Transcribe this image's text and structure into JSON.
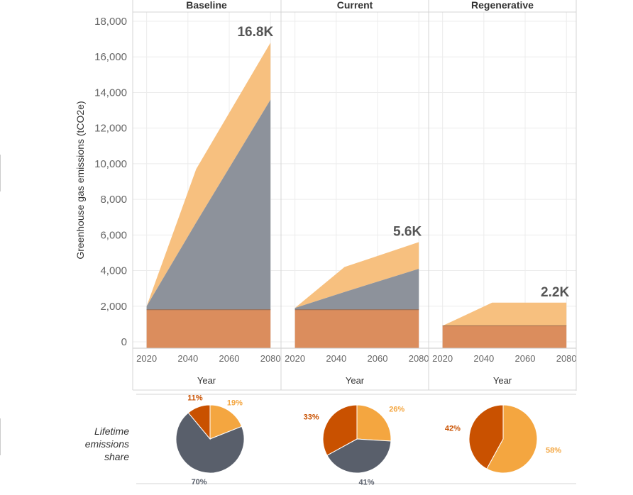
{
  "chart_data": {
    "type": "area",
    "ylabel": "Greenhouse gas emissions (tCO2e)",
    "xlabel": "Year",
    "yticks": [
      "0",
      "2,000",
      "4,000",
      "6,000",
      "8,000",
      "10,000",
      "12,000",
      "14,000",
      "16,000",
      "18,000"
    ],
    "ylim": [
      0,
      18000
    ],
    "xticks": [
      "2020",
      "2040",
      "2060",
      "2080"
    ],
    "xlim": [
      2016,
      2082
    ],
    "grid": true,
    "colors": {
      "light": "#F7C07F",
      "gray": "#8D929B",
      "dark": "#DB8D5D"
    },
    "panels": [
      {
        "title": "Baseline",
        "total_label": "16.8K",
        "x": [
          2020,
          2044,
          2080
        ],
        "series": [
          {
            "values": [
              1800,
              1800,
              1800
            ]
          },
          {
            "values": [
              2000,
              6700,
              13600
            ]
          },
          {
            "values": [
              2000,
              9700,
              16800
            ]
          }
        ]
      },
      {
        "title": "Current",
        "total_label": "5.6K",
        "x": [
          2020,
          2044,
          2080
        ],
        "series": [
          {
            "values": [
              1800,
              1800,
              1800
            ]
          },
          {
            "values": [
              1900,
              2800,
              4100
            ]
          },
          {
            "values": [
              1900,
              4200,
              5600
            ]
          }
        ]
      },
      {
        "title": "Regenerative",
        "total_label": "2.2K",
        "x": [
          2020,
          2044,
          2080
        ],
        "series": [
          {
            "values": [
              900,
              900,
              900
            ]
          },
          {
            "values": [
              900,
              900,
              900
            ]
          },
          {
            "values": [
              900,
              2200,
              2200
            ]
          }
        ]
      }
    ]
  },
  "pies": {
    "label": "Lifetime emissions share",
    "label_lines": [
      "Lifetime",
      "emissions",
      "share"
    ],
    "colors": {
      "light": "#F4A640",
      "gray": "#595F6B",
      "dark": "#C95100"
    },
    "items": [
      {
        "slices": [
          {
            "color": "light",
            "value": 19,
            "label": "19%"
          },
          {
            "color": "gray",
            "value": 70,
            "label": "70%"
          },
          {
            "color": "dark",
            "value": 11,
            "label": "11%"
          }
        ]
      },
      {
        "slices": [
          {
            "color": "light",
            "value": 26,
            "label": "26%"
          },
          {
            "color": "gray",
            "value": 41,
            "label": "41%"
          },
          {
            "color": "dark",
            "value": 33,
            "label": "33%"
          }
        ]
      },
      {
        "slices": [
          {
            "color": "light",
            "value": 58,
            "label": "58%"
          },
          {
            "color": "dark",
            "value": 42,
            "label": "42%"
          }
        ]
      }
    ]
  }
}
